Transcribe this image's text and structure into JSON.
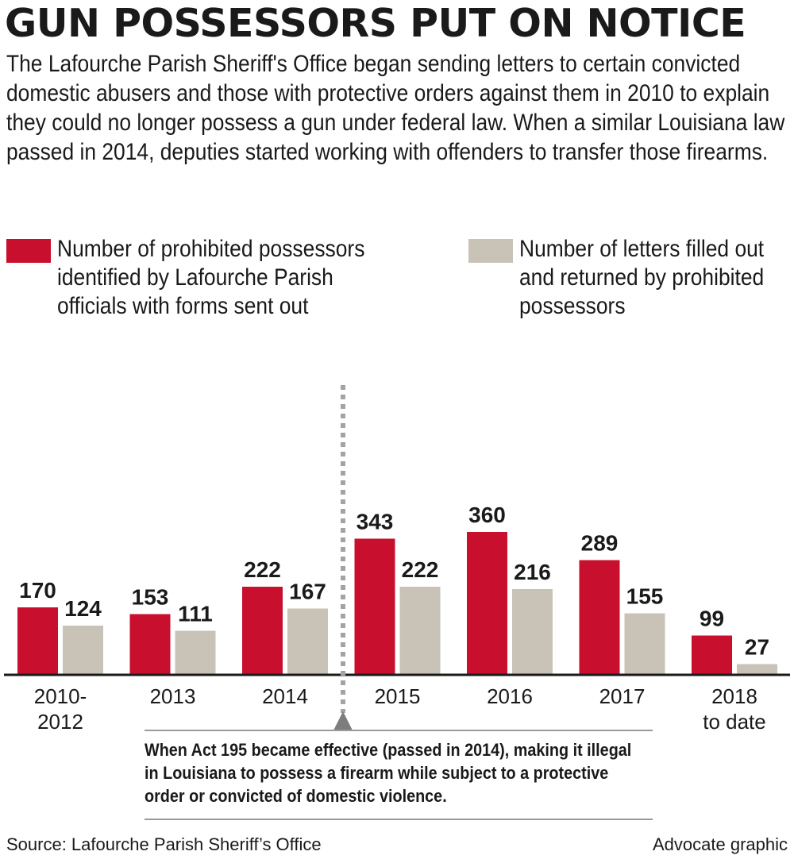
{
  "title": "GUN POSSESSORS PUT ON NOTICE",
  "intro": "The Lafourche Parish Sheriff's Office began sending letters to certain convicted domestic abusers and those with protective orders against them in 2010 to explain they could no longer possess a gun under federal law. When a similar Louisiana law passed in 2014, deputies started working with offenders to transfer those firearms.",
  "legend": {
    "series1": "Number of prohibited possessors identified by Lafourche Parish officials with forms sent out",
    "series2": "Number of letters filled out and returned by prohibited possessors"
  },
  "annotation": "When Act 195 became effective (passed in 2014), making it illegal in Louisiana to possess a firearm while subject to a protective order or convicted of domestic violence.",
  "footer": {
    "source": "Source: Lafourche Parish Sheriff’s Office",
    "credit": "Advocate graphic"
  },
  "colors": {
    "series1": "#c8102e",
    "series2": "#c9c2b6",
    "divider": "#a3a3a3",
    "baseline": "#1a1a1a"
  },
  "chart_data": {
    "type": "bar",
    "categories": [
      [
        "2010-",
        "2012"
      ],
      [
        "2013"
      ],
      [
        "2014"
      ],
      [
        "2015"
      ],
      [
        "2016"
      ],
      [
        "2017"
      ],
      [
        "2018",
        "to date"
      ]
    ],
    "series": [
      {
        "name": "Number of prohibited possessors identified by Lafourche Parish officials with forms sent out",
        "values": [
          170,
          153,
          222,
          343,
          360,
          289,
          99
        ]
      },
      {
        "name": "Number of letters filled out and returned by prohibited possessors",
        "values": [
          124,
          111,
          167,
          222,
          216,
          155,
          27
        ]
      }
    ],
    "ylim": [
      0,
      400
    ],
    "grid": false,
    "legend_position": "top",
    "divider_between": [
      "2014",
      "2015"
    ]
  }
}
